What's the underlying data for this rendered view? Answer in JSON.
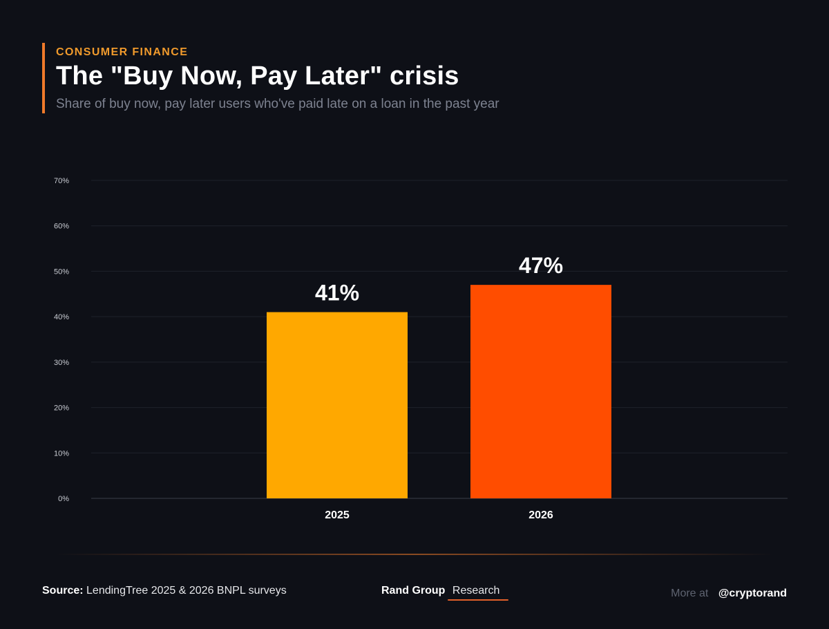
{
  "header": {
    "eyebrow": "CONSUMER FINANCE",
    "title": "The \"Buy Now, Pay Later\" crisis",
    "subtitle": "Share of buy now, pay later users who've paid late on a loan in the past year"
  },
  "chart_data": {
    "type": "bar",
    "title": "The \"Buy Now, Pay Later\" crisis",
    "xlabel": "",
    "ylabel": "",
    "categories": [
      "2025",
      "2026"
    ],
    "values": [
      41,
      47
    ],
    "value_labels": [
      "41%",
      "47%"
    ],
    "bar_colors": [
      "#ffa800",
      "#ff4d00"
    ],
    "ylim": [
      0,
      70
    ],
    "yticks": [
      0,
      10,
      20,
      30,
      40,
      50,
      60,
      70
    ],
    "ytick_labels": [
      "0%",
      "10%",
      "20%",
      "30%",
      "40%",
      "50%",
      "60%",
      "70%"
    ],
    "grid": true
  },
  "footer": {
    "source_label": "Source:",
    "source_text": "LendingTree 2025 & 2026 BNPL surveys",
    "brand_name": "Rand Group",
    "brand_sub": "Research",
    "more_label": "More at",
    "handle": "@cryptorand"
  },
  "colors": {
    "background": "#0e1017",
    "accent": "#f07a2a",
    "gridline": "#1f222b"
  }
}
